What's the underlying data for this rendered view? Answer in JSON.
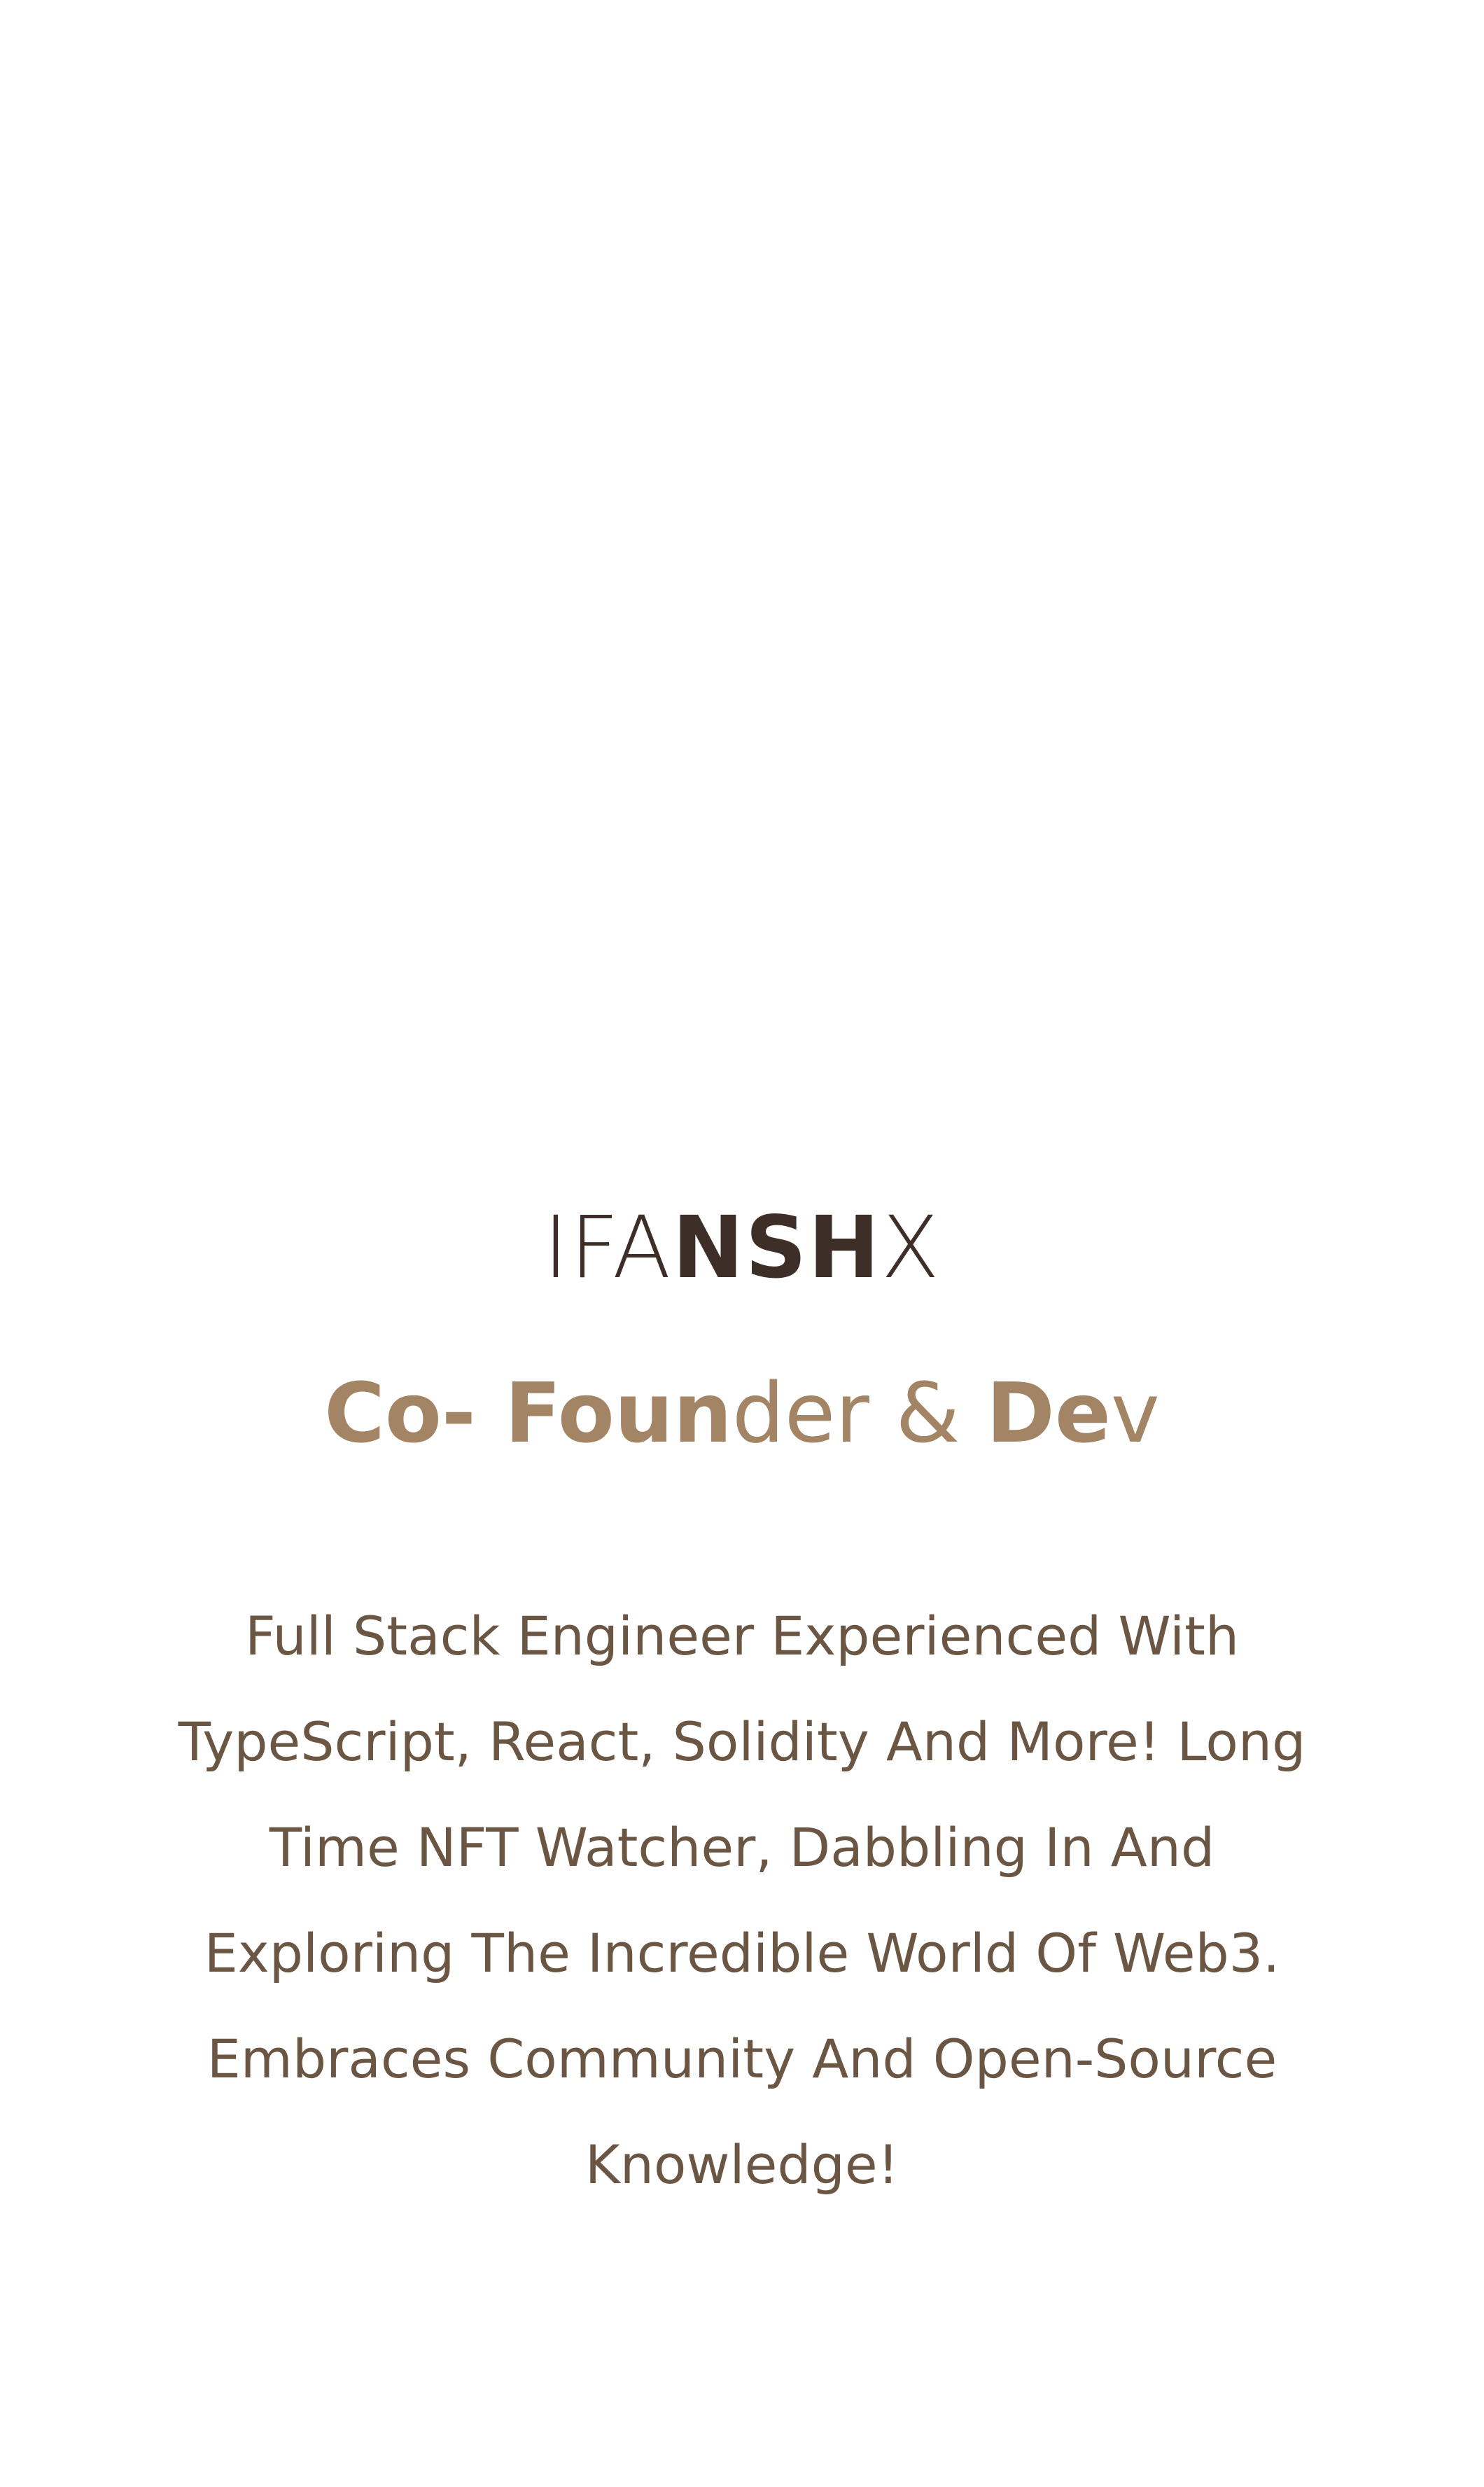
{
  "profile": {
    "name_segments": [
      "I",
      "FA",
      "N",
      "S",
      "H",
      "X"
    ],
    "role_segments": [
      "Co- Foun",
      "de",
      "r",
      " & ",
      "De",
      "v"
    ],
    "bio": "Full Stack Engineer Experienced With TypeScript, React, Solidity And More! Long Time NFT Watcher, Dabbling In And Exploring The Incredible World Of Web3. Embraces Community And Open-Source Knowledge!"
  },
  "colors": {
    "background": "#ffffff",
    "name": "#3d2e28",
    "role": "#a38566",
    "bio": "#6b5643"
  }
}
